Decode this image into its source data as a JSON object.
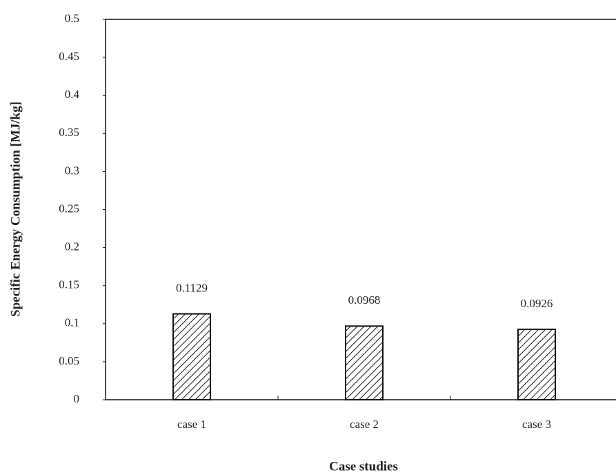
{
  "chart_data": {
    "type": "bar",
    "x_label": "Case studies",
    "y_label": "Specific Energy Consumption  [MJ/kg]",
    "categories": [
      "case 1",
      "case 2",
      "case 3"
    ],
    "values": [
      0.1129,
      0.0968,
      0.0926
    ],
    "color": "#ffffff",
    "ylim": [
      0,
      0.5
    ],
    "yticks": [
      0,
      0.05,
      0.1,
      0.15,
      0.2,
      0.25,
      0.3,
      0.35,
      0.4,
      0.45,
      0.5
    ],
    "grid": false
  }
}
